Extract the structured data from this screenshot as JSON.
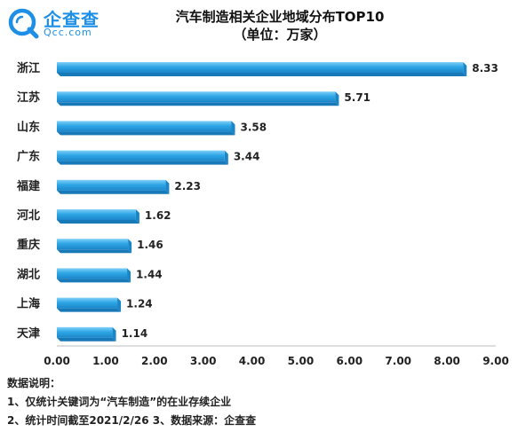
{
  "brand": {
    "name": "企查查",
    "site": "Qcc.com",
    "color": "#1d8fe6"
  },
  "chart_data": {
    "type": "bar",
    "orientation": "horizontal",
    "title": "汽车制造相关企业地域分布TOP10",
    "subtitle": "（单位：万家）",
    "categories": [
      "浙江",
      "江苏",
      "山东",
      "广东",
      "福建",
      "河北",
      "重庆",
      "湖北",
      "上海",
      "天津"
    ],
    "values": [
      8.33,
      5.71,
      3.58,
      3.44,
      2.23,
      1.62,
      1.46,
      1.44,
      1.24,
      1.14
    ],
    "data_labels": [
      "8.33",
      "5.71",
      "3.58",
      "3.44",
      "2.23",
      "1.62",
      "1.46",
      "1.44",
      "1.24",
      "1.14"
    ],
    "xlim": [
      0,
      9
    ],
    "x_ticks": [
      "0.00",
      "1.00",
      "2.00",
      "3.00",
      "4.00",
      "5.00",
      "6.00",
      "7.00",
      "8.00",
      "9.00"
    ],
    "grid": false,
    "bar_color": "#2ea6e6"
  },
  "notes": {
    "heading": "数据说明：",
    "line1": "1、仅统计关键词为“汽车制造”的在业存续企业",
    "line2": "2、统计时间截至2021/2/26 3、数据来源：企查查"
  }
}
